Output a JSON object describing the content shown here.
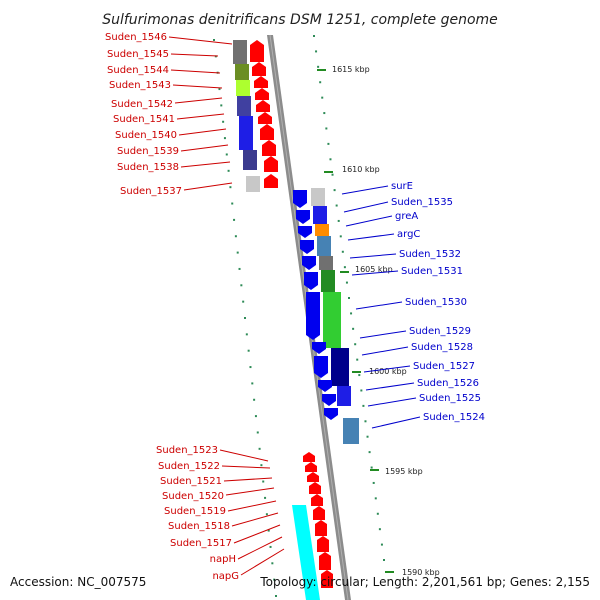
{
  "title": "Sulfurimonas denitrificans DSM 1251, complete genome",
  "accession": "Accession: NC_007575",
  "topology": "Topology: circular; Length: 2,201,561 bp; Genes: 2,155",
  "colors": {
    "backbone": "#8c8c8c",
    "forward_arrow": "#ff0000",
    "reverse_arrow": "#0000ee",
    "label_red": "#cc0000",
    "label_blue": "#0000cc",
    "tick": "#228b22"
  },
  "kbp_marks": [
    {
      "text": "1615 kbp"
    },
    {
      "text": "1610 kbp"
    },
    {
      "text": "1605 kbp"
    },
    {
      "text": "1600 kbp"
    },
    {
      "text": "1595 kbp"
    },
    {
      "text": "1590 kbp"
    }
  ],
  "left_labels": [
    "Suden_1546",
    "Suden_1545",
    "Suden_1544",
    "Suden_1543",
    "Suden_1542",
    "Suden_1541",
    "Suden_1540",
    "Suden_1539",
    "Suden_1538",
    "Suden_1537",
    "Suden_1523",
    "Suden_1522",
    "Suden_1521",
    "Suden_1520",
    "Suden_1519",
    "Suden_1518",
    "Suden_1517",
    "napH",
    "napG"
  ],
  "right_labels": [
    "surE",
    "Suden_1535",
    "greA",
    "argC",
    "Suden_1532",
    "Suden_1531",
    "Suden_1530",
    "Suden_1529",
    "Suden_1528",
    "Suden_1527",
    "Suden_1526",
    "Suden_1525",
    "Suden_1524"
  ]
}
